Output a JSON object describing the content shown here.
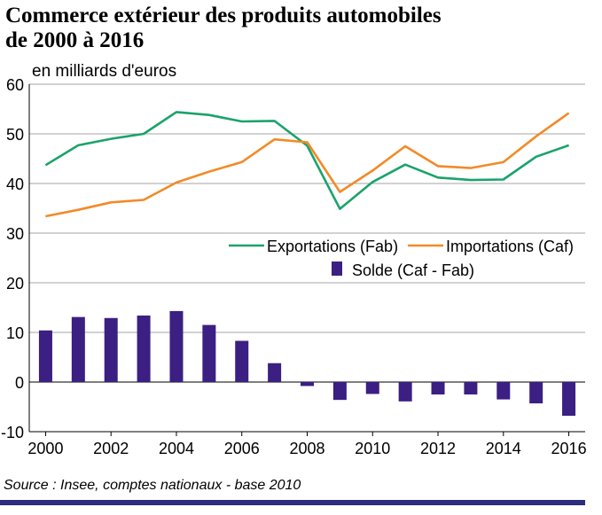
{
  "title_line1": "Commerce extérieur des produits automobiles",
  "title_line2": "de 2000 à 2016",
  "source": "Source : Insee, comptes nationaux - base 2010",
  "chart_data": {
    "type": "line",
    "title": "Commerce extérieur des produits automobiles de 2000 à 2016",
    "unit_label": "en milliards d'euros",
    "x": [
      2000,
      2001,
      2002,
      2003,
      2004,
      2005,
      2006,
      2007,
      2008,
      2009,
      2010,
      2011,
      2012,
      2013,
      2014,
      2015,
      2016
    ],
    "x_ticks": [
      "2000",
      "2002",
      "2004",
      "2006",
      "2008",
      "2010",
      "2012",
      "2014",
      "2016"
    ],
    "y_ticks": [
      "60",
      "50",
      "40",
      "30",
      "20",
      "10",
      "0",
      "-10"
    ],
    "ylim": [
      -10,
      60
    ],
    "grid": true,
    "legend_position": "center-right",
    "series": [
      {
        "name": "Exportations (Fab)",
        "type": "line",
        "color": "#1aa36b",
        "values": [
          43.7,
          47.7,
          49.0,
          50.0,
          54.4,
          53.8,
          52.5,
          52.6,
          47.6,
          34.9,
          40.3,
          43.8,
          41.2,
          40.7,
          40.8,
          45.4,
          47.7
        ]
      },
      {
        "name": "Importations (Caf)",
        "type": "line",
        "color": "#f28a28",
        "values": [
          33.4,
          34.7,
          36.2,
          36.7,
          40.2,
          42.4,
          44.3,
          48.9,
          48.3,
          38.3,
          42.6,
          47.5,
          43.5,
          43.1,
          44.3,
          49.5,
          54.2
        ]
      },
      {
        "name": "Solde (Caf - Fab)",
        "type": "bar",
        "color": "#3b1f82",
        "values": [
          10.4,
          13.1,
          12.9,
          13.4,
          14.3,
          11.5,
          8.3,
          3.8,
          -0.8,
          -3.6,
          -2.4,
          -3.9,
          -2.5,
          -2.5,
          -3.5,
          -4.3,
          -6.8
        ]
      }
    ]
  }
}
